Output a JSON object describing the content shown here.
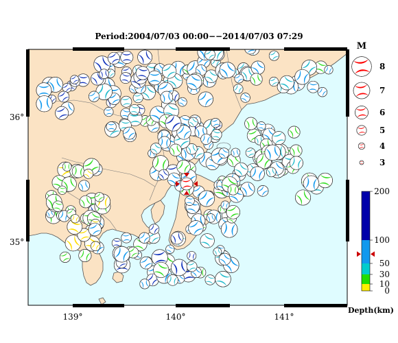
{
  "title": "Period:2004/07/03 00:00−−2014/07/03 07:29",
  "map": {
    "lon_ticks": [
      "139°",
      "140°",
      "141°"
    ],
    "lat_ticks": [
      "36°",
      "35°"
    ],
    "colors": {
      "land": "#fbe3c4",
      "sea": "#dffcff",
      "coast": "#555555",
      "frame": "#000000"
    }
  },
  "magnitude_legend": {
    "title": "M",
    "items": [
      {
        "label": "8",
        "magnitude": 8
      },
      {
        "label": "7",
        "magnitude": 7
      },
      {
        "label": "6",
        "magnitude": 6
      },
      {
        "label": "5",
        "magnitude": 5
      },
      {
        "label": "4",
        "magnitude": 4
      },
      {
        "label": "3",
        "magnitude": 3
      }
    ],
    "color": "#ff0000"
  },
  "depth_scale": {
    "label": "Depth(km)",
    "ticks": [
      "200",
      "100",
      "50",
      "30",
      "10",
      "0"
    ],
    "bands": [
      {
        "from_km": 0,
        "to_km": 10,
        "color": "#ffee00"
      },
      {
        "from_km": 10,
        "to_km": 30,
        "color": "#22dd00"
      },
      {
        "from_km": 30,
        "to_km": 50,
        "color": "#00cccc"
      },
      {
        "from_km": 50,
        "to_km": 100,
        "color": "#1199ee"
      },
      {
        "from_km": 100,
        "to_km": 200,
        "color": "#0000aa"
      }
    ],
    "marker_depth_km": 70,
    "marker_color": "#cc0000"
  },
  "highlight_event": {
    "lon": 140.08,
    "lat": 35.51,
    "magnitude": 6,
    "color": "#ff0000"
  },
  "mechanism_colors": {
    "deep": "#1133bb",
    "mid": "#1199ee",
    "teal": "#22bbcc",
    "shallow": "#33dd22",
    "surface": "#ffdd00"
  }
}
